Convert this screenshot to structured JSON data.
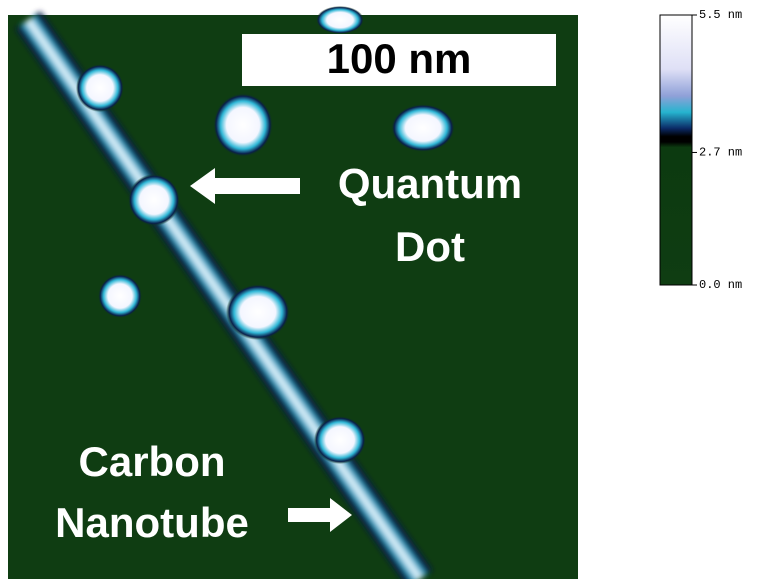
{
  "image": {
    "scale_bar": "100 nm",
    "annotations": {
      "quantum_dot": [
        "Quantum",
        "Dot"
      ],
      "carbon_nanotube": [
        "Carbon",
        "Nanotube"
      ]
    }
  },
  "colorbar": {
    "ticks": [
      {
        "value": 5.5,
        "label": "5.5 nm"
      },
      {
        "value": 2.7,
        "label": "2.7 nm"
      },
      {
        "value": 0.0,
        "label": "0.0 nm"
      }
    ]
  }
}
